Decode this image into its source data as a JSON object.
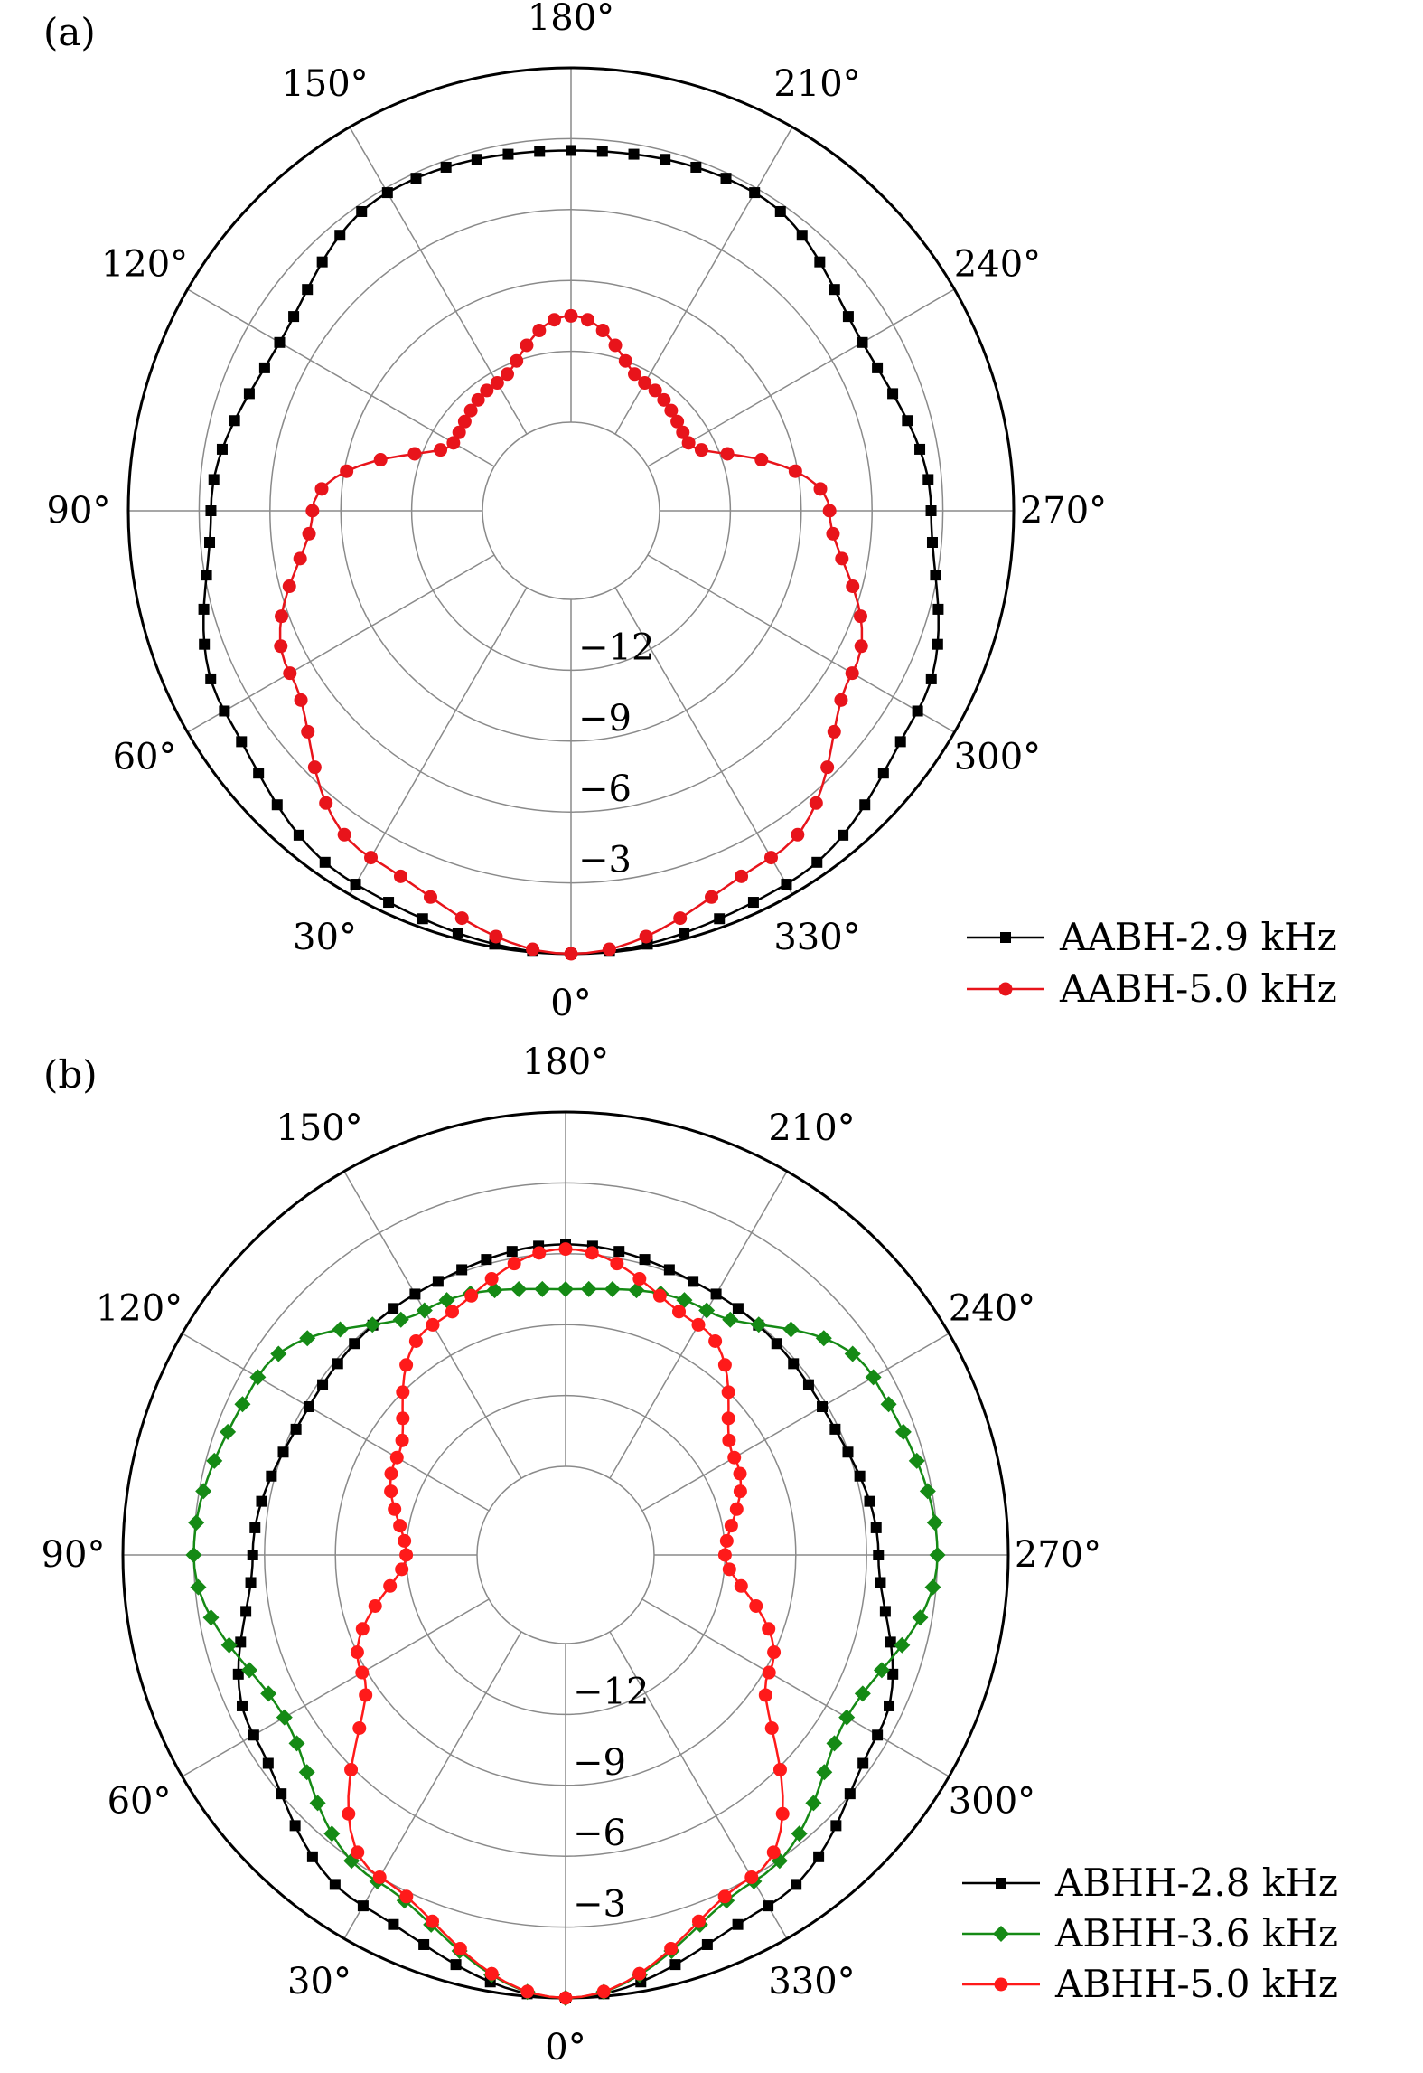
{
  "chart_data": [
    {
      "type": "polar",
      "panel_label": "(a)",
      "r_range": [
        -15,
        0
      ],
      "r_ticks": [
        -12,
        -9,
        -6,
        -3
      ],
      "r_tick_labels": [
        "−12",
        "−9",
        "−6",
        "−3"
      ],
      "angle_ticks": [
        0,
        30,
        60,
        90,
        120,
        150,
        180,
        210,
        240,
        270,
        300,
        330
      ],
      "angle_tick_labels": [
        "0°",
        "30°",
        "60°",
        "90°",
        "120°",
        "150°",
        "180°",
        "210°",
        "240°",
        "270°",
        "300°",
        "330°"
      ],
      "grid": true,
      "legend_position": "bottom-right",
      "series": [
        {
          "name": "AABH-2.9 kHz",
          "color": "#000000",
          "marker": "square",
          "angles_deg": [
            0,
            30,
            60,
            90,
            120,
            150,
            180,
            210,
            240,
            270,
            300,
            330
          ],
          "values_db": [
            0,
            -0.5,
            -1.8,
            -3.5,
            -4.5,
            -3.2,
            -3.5,
            -3.2,
            -4.5,
            -3.5,
            -1.8,
            -0.5
          ]
        },
        {
          "name": "AABH-5.0 kHz",
          "color": "#e8141b",
          "marker": "circle",
          "angles_deg": [
            0,
            30,
            60,
            90,
            120,
            150,
            180,
            210,
            240,
            270,
            300,
            330
          ],
          "values_db": [
            0,
            -1.8,
            -5.0,
            -7.8,
            -13.0,
            -12.5,
            -10.5,
            -12.5,
            -13.0,
            -7.8,
            -5.0,
            -1.8
          ]
        }
      ]
    },
    {
      "type": "polar",
      "panel_label": "(b)",
      "r_range": [
        -15,
        0
      ],
      "r_ticks": [
        -12,
        -9,
        -6,
        -3
      ],
      "r_tick_labels": [
        "−12",
        "−9",
        "−6",
        "−3"
      ],
      "angle_ticks": [
        0,
        30,
        60,
        90,
        120,
        150,
        180,
        210,
        240,
        270,
        300,
        330
      ],
      "angle_tick_labels": [
        "0°",
        "30°",
        "60°",
        "90°",
        "120°",
        "150°",
        "180°",
        "210°",
        "240°",
        "270°",
        "300°",
        "330°"
      ],
      "grid": true,
      "legend_position": "bottom-right",
      "series": [
        {
          "name": "ABHH-2.8 kHz",
          "color": "#000000",
          "marker": "square",
          "angles_deg": [
            0,
            30,
            60,
            90,
            120,
            150,
            180,
            210,
            240,
            270,
            300,
            330
          ],
          "values_db": [
            0,
            -1.6,
            -3.5,
            -5.5,
            -6.2,
            -6.0,
            -5.6,
            -6.0,
            -6.2,
            -5.5,
            -3.5,
            -1.6
          ]
        },
        {
          "name": "ABHH-3.6 kHz",
          "color": "#158a15",
          "marker": "diamond",
          "angles_deg": [
            0,
            30,
            60,
            90,
            120,
            150,
            180,
            210,
            240,
            270,
            300,
            330
          ],
          "values_db": [
            0,
            -2.8,
            -5.0,
            -3.0,
            -3.7,
            -6.8,
            -7.5,
            -6.8,
            -3.7,
            -3.0,
            -5.0,
            -2.8
          ]
        },
        {
          "name": "ABHH-5.0 kHz",
          "color": "#ff1a1a",
          "marker": "circle",
          "angles_deg": [
            0,
            30,
            60,
            90,
            120,
            150,
            180,
            210,
            240,
            270,
            300,
            330
          ],
          "values_db": [
            0,
            -3.0,
            -8.8,
            -12.0,
            -10.5,
            -7.5,
            -5.8,
            -7.5,
            -10.5,
            -12.0,
            -8.8,
            -3.0
          ]
        }
      ]
    }
  ]
}
